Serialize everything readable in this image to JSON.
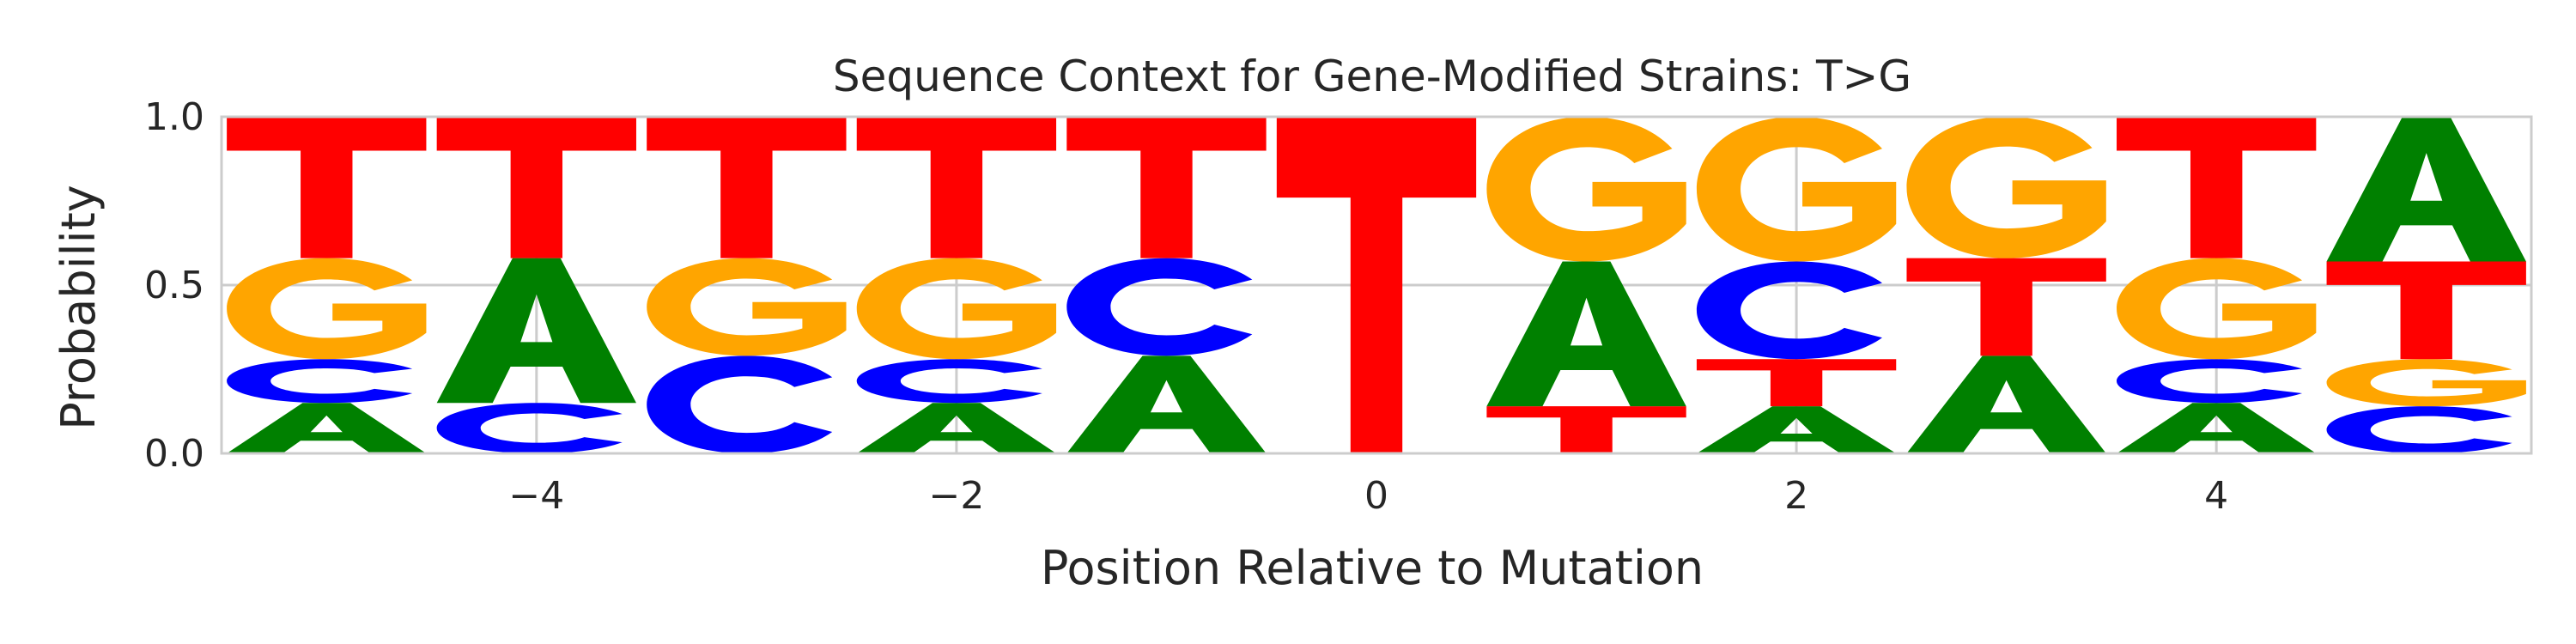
{
  "chart_data": {
    "type": "sequence-logo",
    "title": "Sequence Context for Gene-Modified Strains: T>G",
    "xlabel": "Position Relative to Mutation",
    "ylabel": "Probability",
    "xlim": [
      -5.5,
      5.5
    ],
    "ylim": [
      0.0,
      1.0
    ],
    "x_ticks": [
      -4,
      -2,
      0,
      2,
      4
    ],
    "x_tick_labels": [
      "−4",
      "−2",
      "0",
      "2",
      "4"
    ],
    "y_ticks": [
      0.0,
      0.5,
      1.0
    ],
    "y_tick_labels": [
      "0.0",
      "0.5",
      "1.0"
    ],
    "grid": true,
    "base_colors": {
      "A": "#008000",
      "C": "#0000ff",
      "G": "#ffa500",
      "T": "#ff0000"
    },
    "positions": [
      {
        "x": -5,
        "stack": [
          {
            "base": "A",
            "p": 0.15
          },
          {
            "base": "C",
            "p": 0.13
          },
          {
            "base": "G",
            "p": 0.3
          },
          {
            "base": "T",
            "p": 0.42
          }
        ]
      },
      {
        "x": -4,
        "stack": [
          {
            "base": "C",
            "p": 0.15
          },
          {
            "base": "A",
            "p": 0.43
          },
          {
            "base": "T",
            "p": 0.42
          }
        ]
      },
      {
        "x": -3,
        "stack": [
          {
            "base": "C",
            "p": 0.29
          },
          {
            "base": "G",
            "p": 0.29
          },
          {
            "base": "T",
            "p": 0.42
          }
        ]
      },
      {
        "x": -2,
        "stack": [
          {
            "base": "A",
            "p": 0.15
          },
          {
            "base": "C",
            "p": 0.13
          },
          {
            "base": "G",
            "p": 0.3
          },
          {
            "base": "T",
            "p": 0.42
          }
        ]
      },
      {
        "x": -1,
        "stack": [
          {
            "base": "A",
            "p": 0.29
          },
          {
            "base": "C",
            "p": 0.29
          },
          {
            "base": "T",
            "p": 0.42
          }
        ]
      },
      {
        "x": 0,
        "stack": [
          {
            "base": "T",
            "p": 1.0
          }
        ]
      },
      {
        "x": 1,
        "stack": [
          {
            "base": "T",
            "p": 0.14
          },
          {
            "base": "A",
            "p": 0.43
          },
          {
            "base": "G",
            "p": 0.43
          }
        ]
      },
      {
        "x": 2,
        "stack": [
          {
            "base": "A",
            "p": 0.14
          },
          {
            "base": "T",
            "p": 0.14
          },
          {
            "base": "C",
            "p": 0.29
          },
          {
            "base": "G",
            "p": 0.43
          }
        ]
      },
      {
        "x": 3,
        "stack": [
          {
            "base": "A",
            "p": 0.29
          },
          {
            "base": "T",
            "p": 0.29
          },
          {
            "base": "G",
            "p": 0.42
          }
        ]
      },
      {
        "x": 4,
        "stack": [
          {
            "base": "A",
            "p": 0.15
          },
          {
            "base": "C",
            "p": 0.13
          },
          {
            "base": "G",
            "p": 0.3
          },
          {
            "base": "T",
            "p": 0.42
          }
        ]
      },
      {
        "x": 5,
        "stack": [
          {
            "base": "C",
            "p": 0.14
          },
          {
            "base": "G",
            "p": 0.14
          },
          {
            "base": "T",
            "p": 0.29
          },
          {
            "base": "A",
            "p": 0.43
          }
        ]
      }
    ]
  }
}
